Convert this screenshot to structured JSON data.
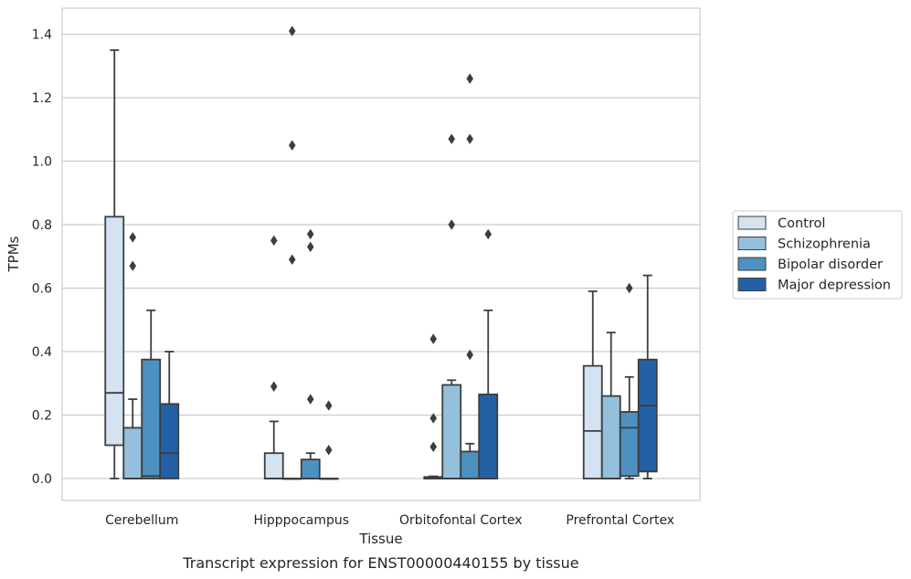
{
  "chart_data": {
    "type": "box",
    "xlabel": "Tissue",
    "ylabel": "TPMs",
    "caption": "Transcript expression for ENST00000440155 by tissue",
    "ylim": [
      -0.07,
      1.48
    ],
    "yticks": [
      0.0,
      0.2,
      0.4,
      0.6,
      0.8,
      1.0,
      1.2,
      1.4
    ],
    "ytick_labels": [
      "0.0",
      "0.2",
      "0.4",
      "0.6",
      "0.8",
      "1.0",
      "1.2",
      "1.4"
    ],
    "grid": "horizontal",
    "legend_position": "right",
    "categories": [
      "Cerebellum",
      "Hipppocampus",
      "Orbitofontal Cortex",
      "Prefrontal Cortex"
    ],
    "series": [
      {
        "name": "Control",
        "color": "#d3e3f2",
        "boxes": [
          {
            "whislo": 0.0,
            "q1": 0.105,
            "med": 0.27,
            "q3": 0.825,
            "whishi": 1.35,
            "fliers": []
          },
          {
            "whislo": 0.0,
            "q1": 0.0,
            "med": 0.0,
            "q3": 0.08,
            "whishi": 0.18,
            "fliers": [
              0.29,
              0.75
            ]
          },
          {
            "whislo": 0.0,
            "q1": 0.0,
            "med": 0.0,
            "q3": 0.005,
            "whishi": 0.007,
            "fliers": [
              0.1,
              0.19,
              0.44
            ]
          },
          {
            "whislo": 0.0,
            "q1": 0.0,
            "med": 0.15,
            "q3": 0.355,
            "whishi": 0.59,
            "fliers": []
          }
        ]
      },
      {
        "name": "Schizophrenia",
        "color": "#94c0de",
        "boxes": [
          {
            "whislo": 0.0,
            "q1": 0.0,
            "med": 0.0,
            "q3": 0.16,
            "whishi": 0.25,
            "fliers": [
              0.67,
              0.76
            ]
          },
          {
            "whislo": 0.0,
            "q1": 0.0,
            "med": 0.0,
            "q3": 0.0,
            "whishi": 0.0,
            "fliers": [
              0.69,
              1.05,
              1.41
            ]
          },
          {
            "whislo": 0.0,
            "q1": 0.0,
            "med": 0.0,
            "q3": 0.295,
            "whishi": 0.31,
            "fliers": [
              0.8,
              1.07
            ]
          },
          {
            "whislo": 0.0,
            "q1": 0.0,
            "med": 0.0,
            "q3": 0.26,
            "whishi": 0.46,
            "fliers": []
          }
        ]
      },
      {
        "name": "Bipolar disorder",
        "color": "#4d91c1",
        "boxes": [
          {
            "whislo": 0.0,
            "q1": 0.0,
            "med": 0.008,
            "q3": 0.375,
            "whishi": 0.53,
            "fliers": []
          },
          {
            "whislo": 0.0,
            "q1": 0.0,
            "med": 0.0,
            "q3": 0.06,
            "whishi": 0.08,
            "fliers": [
              0.25,
              0.73,
              0.77
            ]
          },
          {
            "whislo": 0.0,
            "q1": 0.0,
            "med": 0.0,
            "q3": 0.085,
            "whishi": 0.11,
            "fliers": [
              0.39,
              1.07,
              1.26
            ]
          },
          {
            "whislo": 0.0,
            "q1": 0.008,
            "med": 0.16,
            "q3": 0.21,
            "whishi": 0.32,
            "fliers": [
              0.6
            ]
          }
        ]
      },
      {
        "name": "Major depression",
        "color": "#2461a4",
        "boxes": [
          {
            "whislo": 0.0,
            "q1": 0.0,
            "med": 0.08,
            "q3": 0.235,
            "whishi": 0.4,
            "fliers": []
          },
          {
            "whislo": 0.0,
            "q1": 0.0,
            "med": 0.0,
            "q3": 0.0,
            "whishi": 0.0,
            "fliers": [
              0.09,
              0.23
            ]
          },
          {
            "whislo": 0.0,
            "q1": 0.0,
            "med": 0.0,
            "q3": 0.265,
            "whishi": 0.53,
            "fliers": [
              0.77
            ]
          },
          {
            "whislo": 0.0,
            "q1": 0.022,
            "med": 0.23,
            "q3": 0.375,
            "whishi": 0.64,
            "fliers": []
          }
        ]
      }
    ]
  }
}
